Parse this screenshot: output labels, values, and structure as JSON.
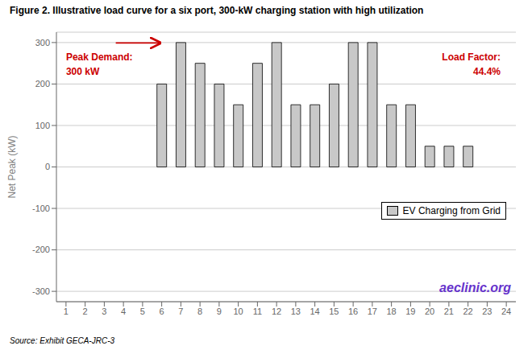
{
  "chart_data": {
    "type": "bar",
    "title": "Figure 2. Illustrative load curve for a six port, 300-kW charging station with high utilization",
    "y_label": "Net Peak (kW)",
    "categories": [
      "1",
      "2",
      "3",
      "4",
      "5",
      "6",
      "7",
      "8",
      "9",
      "10",
      "11",
      "12",
      "13",
      "14",
      "15",
      "16",
      "17",
      "18",
      "19",
      "20",
      "21",
      "22",
      "23",
      "24"
    ],
    "series": [
      {
        "name": "EV Charging from Grid",
        "color": "#c8c8c8",
        "values": [
          0,
          0,
          0,
          0,
          0,
          200,
          300,
          250,
          200,
          150,
          250,
          300,
          150,
          150,
          200,
          300,
          300,
          150,
          150,
          50,
          50,
          50,
          0,
          0
        ]
      }
    ],
    "ylim": [
      -325,
      325
    ],
    "yticks": [
      -300,
      -200,
      -100,
      0,
      100,
      200,
      300
    ],
    "grid": true,
    "legend": "lower right",
    "annotations": [
      {
        "text": "Peak Demand:",
        "color": "#cc0000"
      },
      {
        "text": "300 kW",
        "color": "#cc0000"
      },
      {
        "text": "Load Factor:",
        "color": "#cc0000"
      },
      {
        "text": "44.4%",
        "color": "#cc0000"
      },
      {
        "text": "aeclinic.org",
        "color": "#6633cc"
      }
    ],
    "source": "Source: Exhibit GECA-JRC-3"
  }
}
